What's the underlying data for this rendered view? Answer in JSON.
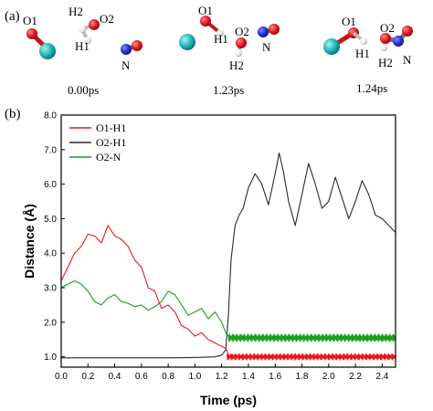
{
  "panel_a": {
    "label": "(a)",
    "snapshots": [
      {
        "time": "0.00ps",
        "labels": {
          "o1": "O1",
          "h2": "H2",
          "o2": "O2",
          "h1": "H1",
          "n": "N"
        }
      },
      {
        "time": "1.23ps",
        "labels": {
          "o1": "O1",
          "h1": "H1",
          "o2": "O2",
          "h2": "H2",
          "n": "N"
        }
      },
      {
        "time": "1.24ps",
        "labels": {
          "o1": "O1",
          "h1": "H1",
          "o2": "O2",
          "h2": "H2",
          "n": "N"
        }
      }
    ],
    "atom_colors": {
      "oxygen": "#e0141b",
      "hydrogen": "#f2f2f2",
      "nitrogen": "#1f2fd0",
      "metal": "#19b3b8",
      "bond_grey": "#9a9a9a"
    }
  },
  "chart_data": {
    "panel_label": "(b)",
    "type": "line",
    "xlabel": "Time (ps)",
    "ylabel": "Distance (Å)",
    "xlim": [
      0.0,
      2.5
    ],
    "ylim": [
      0.7,
      8.0
    ],
    "x_ticks": [
      "0.0",
      "0.2",
      "0.4",
      "0.6",
      "0.8",
      "1.0",
      "1.2",
      "1.4",
      "1.6",
      "1.8",
      "2.0",
      "2.2",
      "2.4"
    ],
    "y_ticks": [
      "1.0",
      "2.0",
      "3.0",
      "4.0",
      "5.0",
      "6.0",
      "7.0",
      "8.0"
    ],
    "legend_position": "top-left",
    "grid": false,
    "series": [
      {
        "name": "O1-H1",
        "color": "#e8191c",
        "points": [
          [
            0.0,
            3.2
          ],
          [
            0.05,
            3.6
          ],
          [
            0.1,
            4.0
          ],
          [
            0.15,
            4.2
          ],
          [
            0.2,
            4.55
          ],
          [
            0.25,
            4.5
          ],
          [
            0.3,
            4.3
          ],
          [
            0.35,
            4.8
          ],
          [
            0.4,
            4.5
          ],
          [
            0.45,
            4.4
          ],
          [
            0.5,
            4.2
          ],
          [
            0.55,
            3.8
          ],
          [
            0.6,
            3.6
          ],
          [
            0.65,
            3.0
          ],
          [
            0.7,
            2.9
          ],
          [
            0.75,
            2.4
          ],
          [
            0.8,
            2.5
          ],
          [
            0.85,
            2.3
          ],
          [
            0.9,
            1.9
          ],
          [
            0.95,
            1.8
          ],
          [
            1.0,
            1.6
          ],
          [
            1.05,
            1.7
          ],
          [
            1.1,
            1.5
          ],
          [
            1.15,
            1.4
          ],
          [
            1.2,
            1.3
          ],
          [
            1.23,
            1.25
          ],
          [
            1.25,
            1.05
          ],
          [
            1.5,
            1.0
          ],
          [
            2.0,
            1.0
          ],
          [
            2.5,
            1.0
          ]
        ],
        "oscillation": {
          "from": 1.24,
          "to": 2.5,
          "center": 1.0,
          "amplitude": 0.1
        }
      },
      {
        "name": "O2-H1",
        "color": "#2b2b2b",
        "points": [
          [
            0.0,
            0.97
          ],
          [
            0.2,
            0.97
          ],
          [
            0.4,
            0.97
          ],
          [
            0.6,
            0.97
          ],
          [
            0.8,
            0.97
          ],
          [
            1.0,
            0.98
          ],
          [
            1.15,
            1.0
          ],
          [
            1.2,
            1.05
          ],
          [
            1.23,
            1.2
          ],
          [
            1.25,
            2.2
          ],
          [
            1.27,
            3.8
          ],
          [
            1.3,
            4.8
          ],
          [
            1.33,
            5.1
          ],
          [
            1.36,
            5.3
          ],
          [
            1.4,
            5.9
          ],
          [
            1.45,
            6.3
          ],
          [
            1.5,
            6.0
          ],
          [
            1.55,
            5.4
          ],
          [
            1.6,
            6.3
          ],
          [
            1.63,
            6.9
          ],
          [
            1.66,
            6.4
          ],
          [
            1.7,
            5.5
          ],
          [
            1.75,
            4.8
          ],
          [
            1.8,
            5.7
          ],
          [
            1.85,
            6.6
          ],
          [
            1.9,
            6.0
          ],
          [
            1.95,
            5.3
          ],
          [
            2.0,
            5.5
          ],
          [
            2.05,
            6.2
          ],
          [
            2.1,
            5.6
          ],
          [
            2.15,
            5.0
          ],
          [
            2.2,
            5.5
          ],
          [
            2.25,
            6.1
          ],
          [
            2.3,
            5.7
          ],
          [
            2.35,
            5.1
          ],
          [
            2.4,
            5.0
          ],
          [
            2.45,
            4.8
          ],
          [
            2.5,
            4.6
          ]
        ]
      },
      {
        "name": "O2-N",
        "color": "#19a01b",
        "points": [
          [
            0.0,
            3.0
          ],
          [
            0.05,
            3.1
          ],
          [
            0.1,
            3.2
          ],
          [
            0.15,
            3.1
          ],
          [
            0.2,
            2.9
          ],
          [
            0.25,
            2.6
          ],
          [
            0.3,
            2.5
          ],
          [
            0.35,
            2.7
          ],
          [
            0.4,
            2.8
          ],
          [
            0.45,
            2.6
          ],
          [
            0.5,
            2.55
          ],
          [
            0.55,
            2.45
          ],
          [
            0.6,
            2.5
          ],
          [
            0.65,
            2.35
          ],
          [
            0.7,
            2.45
          ],
          [
            0.75,
            2.6
          ],
          [
            0.8,
            2.9
          ],
          [
            0.85,
            2.8
          ],
          [
            0.9,
            2.5
          ],
          [
            0.95,
            2.2
          ],
          [
            1.0,
            2.3
          ],
          [
            1.05,
            2.4
          ],
          [
            1.1,
            2.1
          ],
          [
            1.15,
            2.3
          ],
          [
            1.2,
            2.0
          ],
          [
            1.23,
            1.7
          ],
          [
            1.25,
            1.6
          ],
          [
            1.4,
            1.6
          ],
          [
            1.6,
            1.55
          ],
          [
            1.8,
            1.55
          ],
          [
            2.0,
            1.55
          ],
          [
            2.2,
            1.5
          ],
          [
            2.4,
            1.5
          ],
          [
            2.5,
            1.5
          ]
        ],
        "oscillation": {
          "from": 1.25,
          "to": 2.5,
          "center": 1.55,
          "amplitude": 0.12
        }
      }
    ]
  }
}
